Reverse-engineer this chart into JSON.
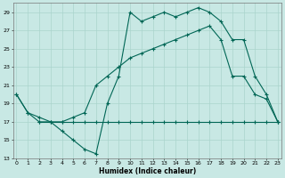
{
  "xlabel": "Humidex (Indice chaleur)",
  "bg_color": "#c8e8e4",
  "grid_color": "#aad4cc",
  "line_color": "#006655",
  "xlim_min": -0.3,
  "xlim_max": 23.3,
  "ylim_min": 13,
  "ylim_max": 30,
  "xticks": [
    0,
    1,
    2,
    3,
    4,
    5,
    6,
    7,
    8,
    9,
    10,
    11,
    12,
    13,
    14,
    15,
    16,
    17,
    18,
    19,
    20,
    21,
    22,
    23
  ],
  "yticks": [
    13,
    15,
    17,
    19,
    21,
    23,
    25,
    27,
    29
  ],
  "line1_x": [
    0,
    1,
    2,
    3,
    4,
    5,
    6,
    7,
    8,
    9,
    10,
    11,
    12,
    13,
    14,
    15,
    16,
    17,
    18,
    19,
    20,
    21,
    22,
    23
  ],
  "line1_y": [
    20,
    18,
    17,
    17,
    16,
    15,
    14,
    13.5,
    19,
    22,
    29,
    28,
    28.5,
    29,
    28.5,
    29,
    29.5,
    29,
    28,
    26,
    26,
    22,
    20,
    17
  ],
  "line2_x": [
    2,
    3,
    4,
    5,
    6,
    7,
    8,
    9,
    10,
    11,
    12,
    13,
    14,
    15,
    16,
    17,
    18,
    19,
    20,
    21,
    22,
    23
  ],
  "line2_y": [
    17,
    17,
    17,
    17,
    17,
    17,
    17,
    17,
    17,
    17,
    17,
    17,
    17,
    17,
    17,
    17,
    17,
    17,
    17,
    17,
    17,
    17
  ],
  "line3_x": [
    0,
    1,
    2,
    3,
    4,
    5,
    6,
    7,
    8,
    9,
    10,
    11,
    12,
    13,
    14,
    15,
    16,
    17,
    18,
    19,
    20,
    21,
    22,
    23
  ],
  "line3_y": [
    20,
    18,
    17.5,
    17,
    17,
    17.5,
    18,
    21,
    22,
    23,
    24,
    24.5,
    25,
    25.5,
    26,
    26.5,
    27,
    27.5,
    26,
    22,
    22,
    20,
    19.5,
    17
  ]
}
